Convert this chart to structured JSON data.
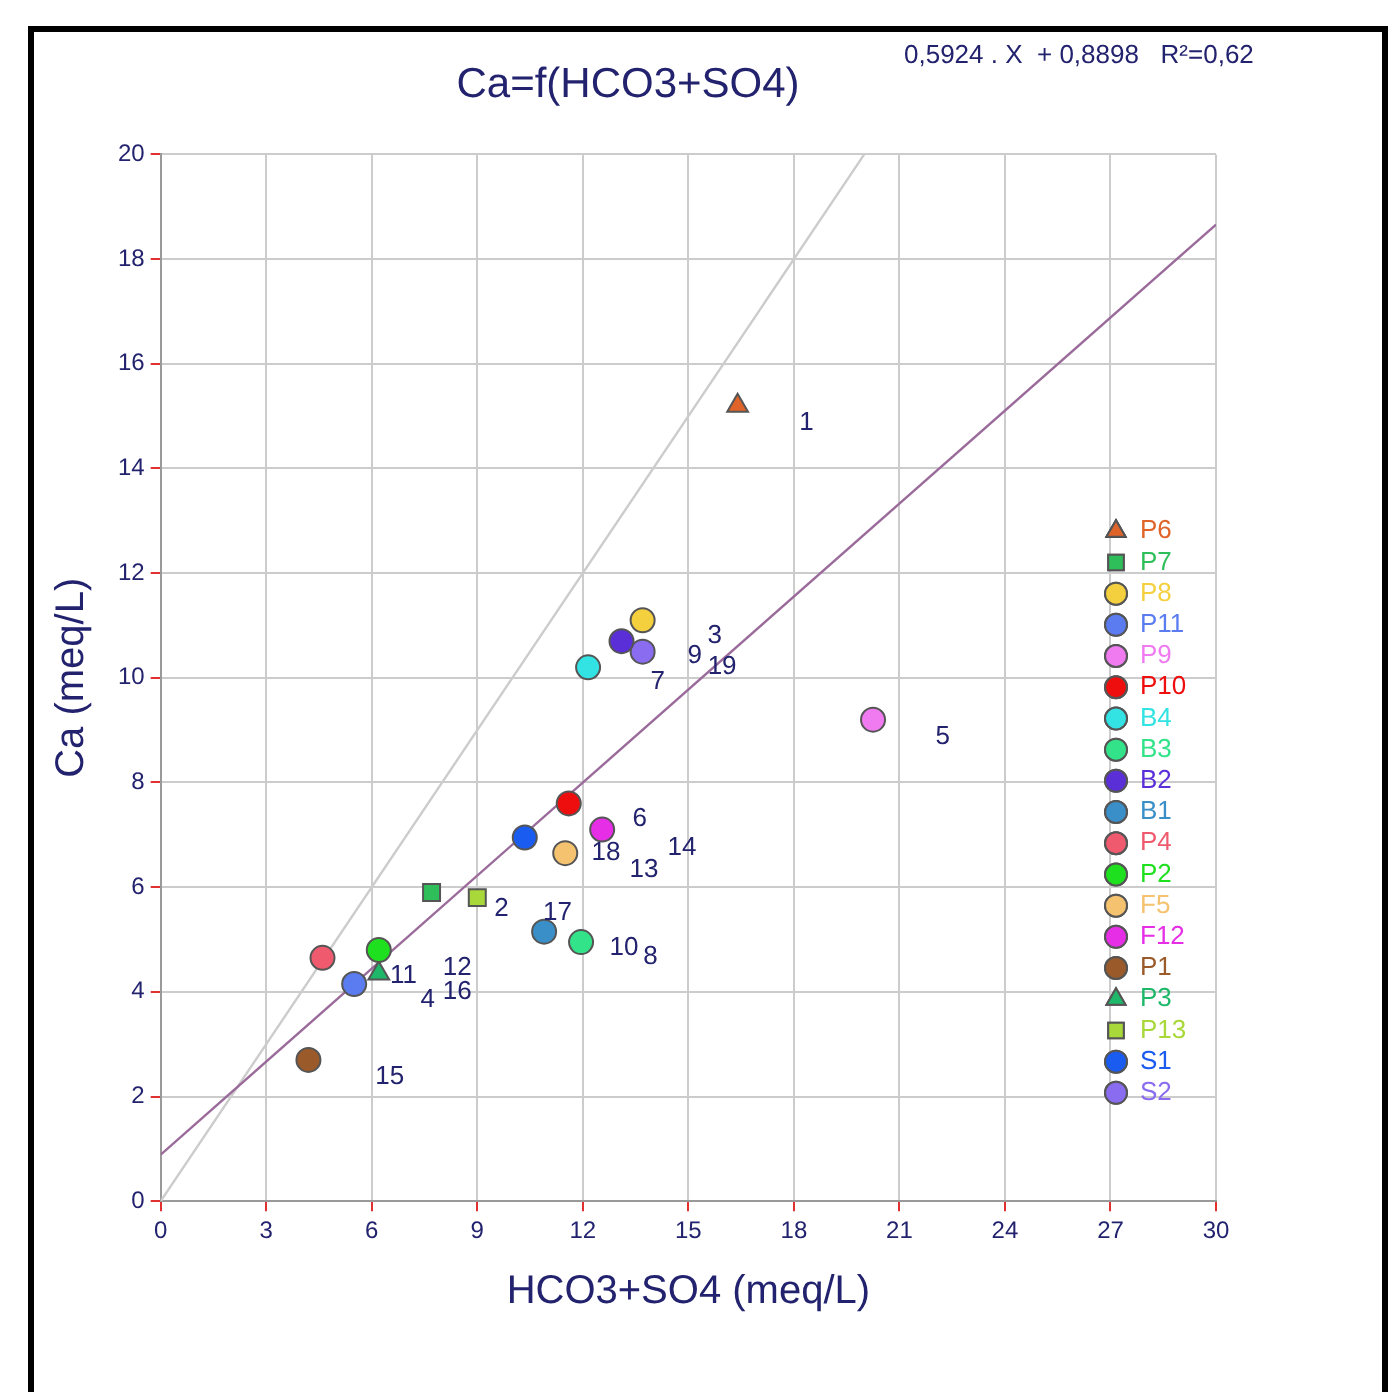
{
  "chart_data": {
    "type": "scatter",
    "title": "Ca=f(HCO3+SO4)",
    "xlabel": "HCO3+SO4 (meq/L)",
    "ylabel": "Ca (meq/L)",
    "xlim": [
      0,
      30
    ],
    "ylim": [
      0,
      20
    ],
    "xticks": [
      0,
      3,
      6,
      9,
      12,
      15,
      18,
      21,
      24,
      27,
      30
    ],
    "yticks": [
      0,
      2,
      4,
      6,
      8,
      10,
      12,
      14,
      16,
      18,
      20
    ],
    "grid": true,
    "legend": "right",
    "series": [
      {
        "name": "P6",
        "color": "#e0642a",
        "marker": "triangle",
        "x": [
          16.4
        ],
        "values": [
          15.2
        ]
      },
      {
        "name": "P7",
        "color": "#2fbf5a",
        "marker": "square",
        "x": [
          7.7
        ],
        "values": [
          5.9
        ]
      },
      {
        "name": "P8",
        "color": "#f4d03f",
        "marker": "circle",
        "x": [
          13.7
        ],
        "values": [
          11.1
        ]
      },
      {
        "name": "P11",
        "color": "#5b7cf0",
        "marker": "circle",
        "x": [
          5.5
        ],
        "values": [
          4.15
        ]
      },
      {
        "name": "P9",
        "color": "#f07af0",
        "marker": "circle",
        "x": [
          20.25
        ],
        "values": [
          9.2
        ]
      },
      {
        "name": "P10",
        "color": "#ee0e0e",
        "marker": "circle",
        "x": [
          11.6
        ],
        "values": [
          7.6
        ]
      },
      {
        "name": "B4",
        "color": "#33e3e3",
        "marker": "circle",
        "x": [
          12.15
        ],
        "values": [
          10.2
        ]
      },
      {
        "name": "B3",
        "color": "#33e38a",
        "marker": "circle",
        "x": [
          11.95
        ],
        "values": [
          4.95
        ]
      },
      {
        "name": "B2",
        "color": "#5b2fd8",
        "marker": "circle",
        "x": [
          13.1
        ],
        "values": [
          10.7
        ]
      },
      {
        "name": "B1",
        "color": "#3a8fc8",
        "marker": "circle",
        "x": [
          10.9
        ],
        "values": [
          5.15
        ]
      },
      {
        "name": "P4",
        "color": "#f05a6e",
        "marker": "circle",
        "x": [
          4.6
        ],
        "values": [
          4.65
        ]
      },
      {
        "name": "P2",
        "color": "#1fe01f",
        "marker": "circle",
        "x": [
          6.2
        ],
        "values": [
          4.8
        ]
      },
      {
        "name": "F5",
        "color": "#f5c270",
        "marker": "circle",
        "x": [
          11.5
        ],
        "values": [
          6.65
        ]
      },
      {
        "name": "F12",
        "color": "#e62ee6",
        "marker": "circle",
        "x": [
          12.55
        ],
        "values": [
          7.1
        ]
      },
      {
        "name": "P1",
        "color": "#9a5a2a",
        "marker": "circle",
        "x": [
          4.2
        ],
        "values": [
          2.7
        ]
      },
      {
        "name": "P3",
        "color": "#1fb86a",
        "marker": "triangle",
        "x": [
          6.2
        ],
        "values": [
          4.35
        ]
      },
      {
        "name": "P13",
        "color": "#a8d83a",
        "marker": "square",
        "x": [
          9.0
        ],
        "values": [
          5.8
        ]
      },
      {
        "name": "S1",
        "color": "#1a5cf0",
        "marker": "circle",
        "x": [
          10.35
        ],
        "values": [
          6.95
        ]
      },
      {
        "name": "S2",
        "color": "#8a6cf0",
        "marker": "circle",
        "x": [
          13.7
        ],
        "values": [
          10.5
        ]
      },
      {
        "type": "line",
        "color": "#9a6a9a",
        "marker": "none",
        "x": [
          0,
          30
        ],
        "values": [
          0.89,
          18.66
        ]
      },
      {
        "type": "line",
        "color": "#cccccc",
        "marker": "none",
        "x": [
          0,
          20
        ],
        "values": [
          0,
          20
        ]
      }
    ],
    "annotations": [
      "0,5924 . X  + 0,8898   R²=0,62",
      "1",
      "5",
      "3",
      "9",
      "19",
      "7",
      "6",
      "14",
      "18",
      "13",
      "2",
      "17",
      "10",
      "8",
      "11",
      "12",
      "16",
      "4",
      "15"
    ]
  }
}
